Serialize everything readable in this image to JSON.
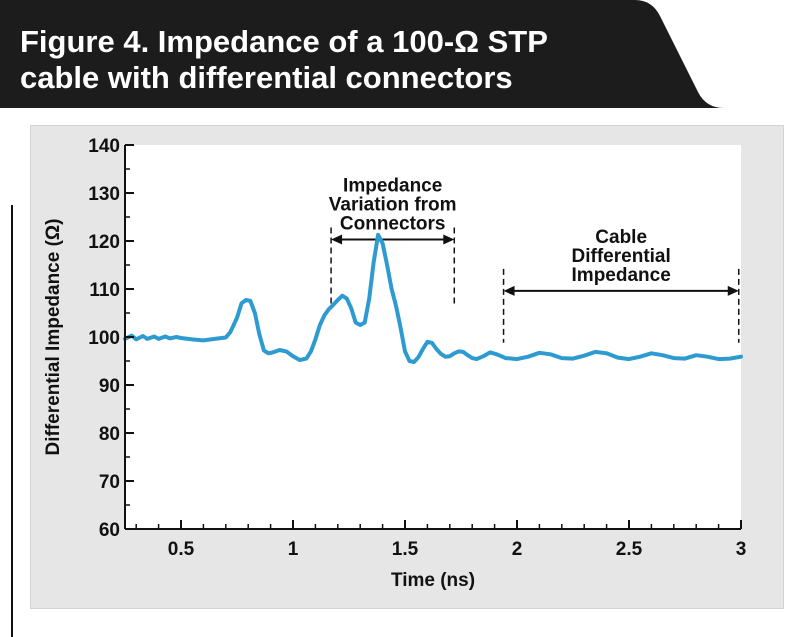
{
  "header": {
    "title_line1": "Figure 4. Impedance of a 100-Ω STP",
    "title_line2": "cable with differential connectors"
  },
  "colors": {
    "banner": "#1c1c1c",
    "panel": "#e6e6e6",
    "plot_bg": "#ffffff",
    "line": "#2e9bd0",
    "text": "#111111"
  },
  "chart_data": {
    "type": "line",
    "title": "",
    "xlabel": "Time (ns)",
    "ylabel": "Differential Impedance (Ω)",
    "xlim": [
      0.25,
      3.0
    ],
    "ylim": [
      60,
      140
    ],
    "xticks": [
      0.5,
      1,
      1.5,
      2,
      2.5,
      3
    ],
    "xtick_labels": [
      "0.5",
      "1",
      "1.5",
      "2",
      "2.5",
      "3"
    ],
    "yticks": [
      60,
      70,
      80,
      90,
      100,
      110,
      120,
      130,
      140
    ],
    "ytick_labels": [
      "60",
      "70",
      "80",
      "90",
      "100",
      "110",
      "120",
      "130",
      "140"
    ],
    "grid": false,
    "series": [
      {
        "x": [
          0.25,
          0.28,
          0.3,
          0.33,
          0.35,
          0.38,
          0.4,
          0.43,
          0.45,
          0.48,
          0.5,
          0.55,
          0.6,
          0.65,
          0.7,
          0.72,
          0.75,
          0.77,
          0.79,
          0.81,
          0.83,
          0.85,
          0.87,
          0.89,
          0.91,
          0.94,
          0.97,
          1.0,
          1.03,
          1.06,
          1.08,
          1.1,
          1.12,
          1.14,
          1.16,
          1.18,
          1.2,
          1.22,
          1.24,
          1.26,
          1.28,
          1.3,
          1.32,
          1.34,
          1.36,
          1.38,
          1.4,
          1.42,
          1.44,
          1.46,
          1.48,
          1.5,
          1.52,
          1.54,
          1.56,
          1.58,
          1.6,
          1.62,
          1.64,
          1.66,
          1.68,
          1.7,
          1.72,
          1.74,
          1.76,
          1.78,
          1.8,
          1.82,
          1.85,
          1.88,
          1.91,
          1.95,
          2.0,
          2.05,
          2.1,
          2.15,
          2.2,
          2.25,
          2.3,
          2.35,
          2.4,
          2.45,
          2.5,
          2.55,
          2.6,
          2.65,
          2.7,
          2.75,
          2.8,
          2.85,
          2.9,
          2.95,
          3.0
        ],
        "y": [
          99.6,
          100.3,
          99.5,
          100.2,
          99.6,
          100.1,
          99.6,
          100.1,
          99.7,
          100.0,
          99.8,
          99.5,
          99.3,
          99.6,
          99.9,
          101.0,
          104.0,
          107.0,
          107.7,
          107.5,
          105.0,
          100.5,
          97.2,
          96.6,
          96.8,
          97.3,
          97.0,
          96.0,
          95.2,
          95.5,
          97.0,
          99.5,
          102.5,
          104.5,
          105.8,
          106.7,
          107.7,
          108.6,
          108.0,
          106.0,
          103.0,
          102.5,
          103.0,
          108.0,
          115.5,
          121.3,
          119.5,
          115.0,
          110.0,
          106.5,
          102.0,
          97.0,
          95.0,
          94.8,
          95.8,
          97.5,
          99.0,
          98.8,
          97.5,
          96.5,
          95.9,
          96.0,
          96.6,
          97.0,
          96.9,
          96.2,
          95.6,
          95.4,
          96.0,
          96.8,
          96.4,
          95.6,
          95.4,
          95.9,
          96.7,
          96.4,
          95.6,
          95.5,
          96.1,
          96.9,
          96.6,
          95.7,
          95.4,
          95.9,
          96.6,
          96.2,
          95.6,
          95.5,
          96.2,
          95.9,
          95.4,
          95.5,
          95.9
        ]
      }
    ],
    "annotations": [
      {
        "lines": [
          "Impedance",
          "Variation from",
          "Connectors"
        ],
        "x_start": 1.17,
        "x_end": 1.72,
        "y_arrow": 120.3,
        "y_bottom": 106.2
      },
      {
        "lines": [
          "Cable",
          "Differential",
          "Impedance"
        ],
        "x_start": 1.94,
        "x_end": 2.99,
        "y_arrow": 109.6,
        "y_bottom": 98.8
      }
    ]
  }
}
